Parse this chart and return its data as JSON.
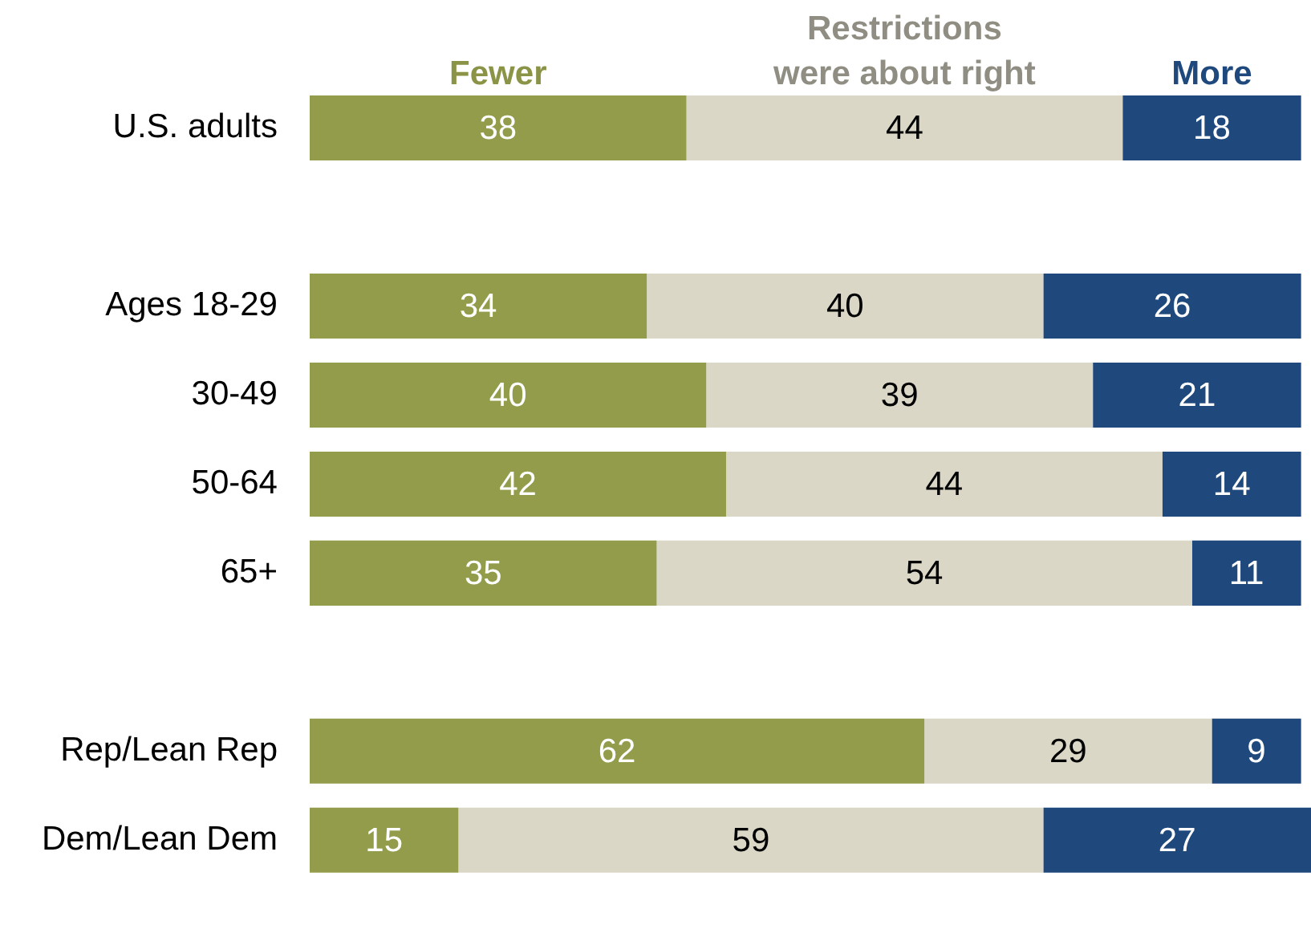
{
  "chart_data": {
    "type": "bar",
    "orientation": "horizontal",
    "stacked": true,
    "categories": [
      "U.S. adults",
      null,
      "Ages 18-29",
      "30-49",
      "50-64",
      "65+",
      null,
      "Rep/Lean Rep",
      "Dem/Lean Dem"
    ],
    "series": [
      {
        "name": "Fewer",
        "color": "#939c4a",
        "values": [
          38,
          null,
          34,
          40,
          42,
          35,
          null,
          62,
          15
        ]
      },
      {
        "name": "Restrictions were about right",
        "color": "#dad7c7",
        "values": [
          44,
          null,
          40,
          39,
          44,
          54,
          null,
          29,
          59
        ]
      },
      {
        "name": "More",
        "color": "#1f497d",
        "values": [
          18,
          null,
          26,
          21,
          14,
          11,
          null,
          9,
          27
        ]
      }
    ],
    "xlim": [
      0,
      101
    ],
    "data_labels": true,
    "legend": "top",
    "tick_labels": "y"
  }
}
